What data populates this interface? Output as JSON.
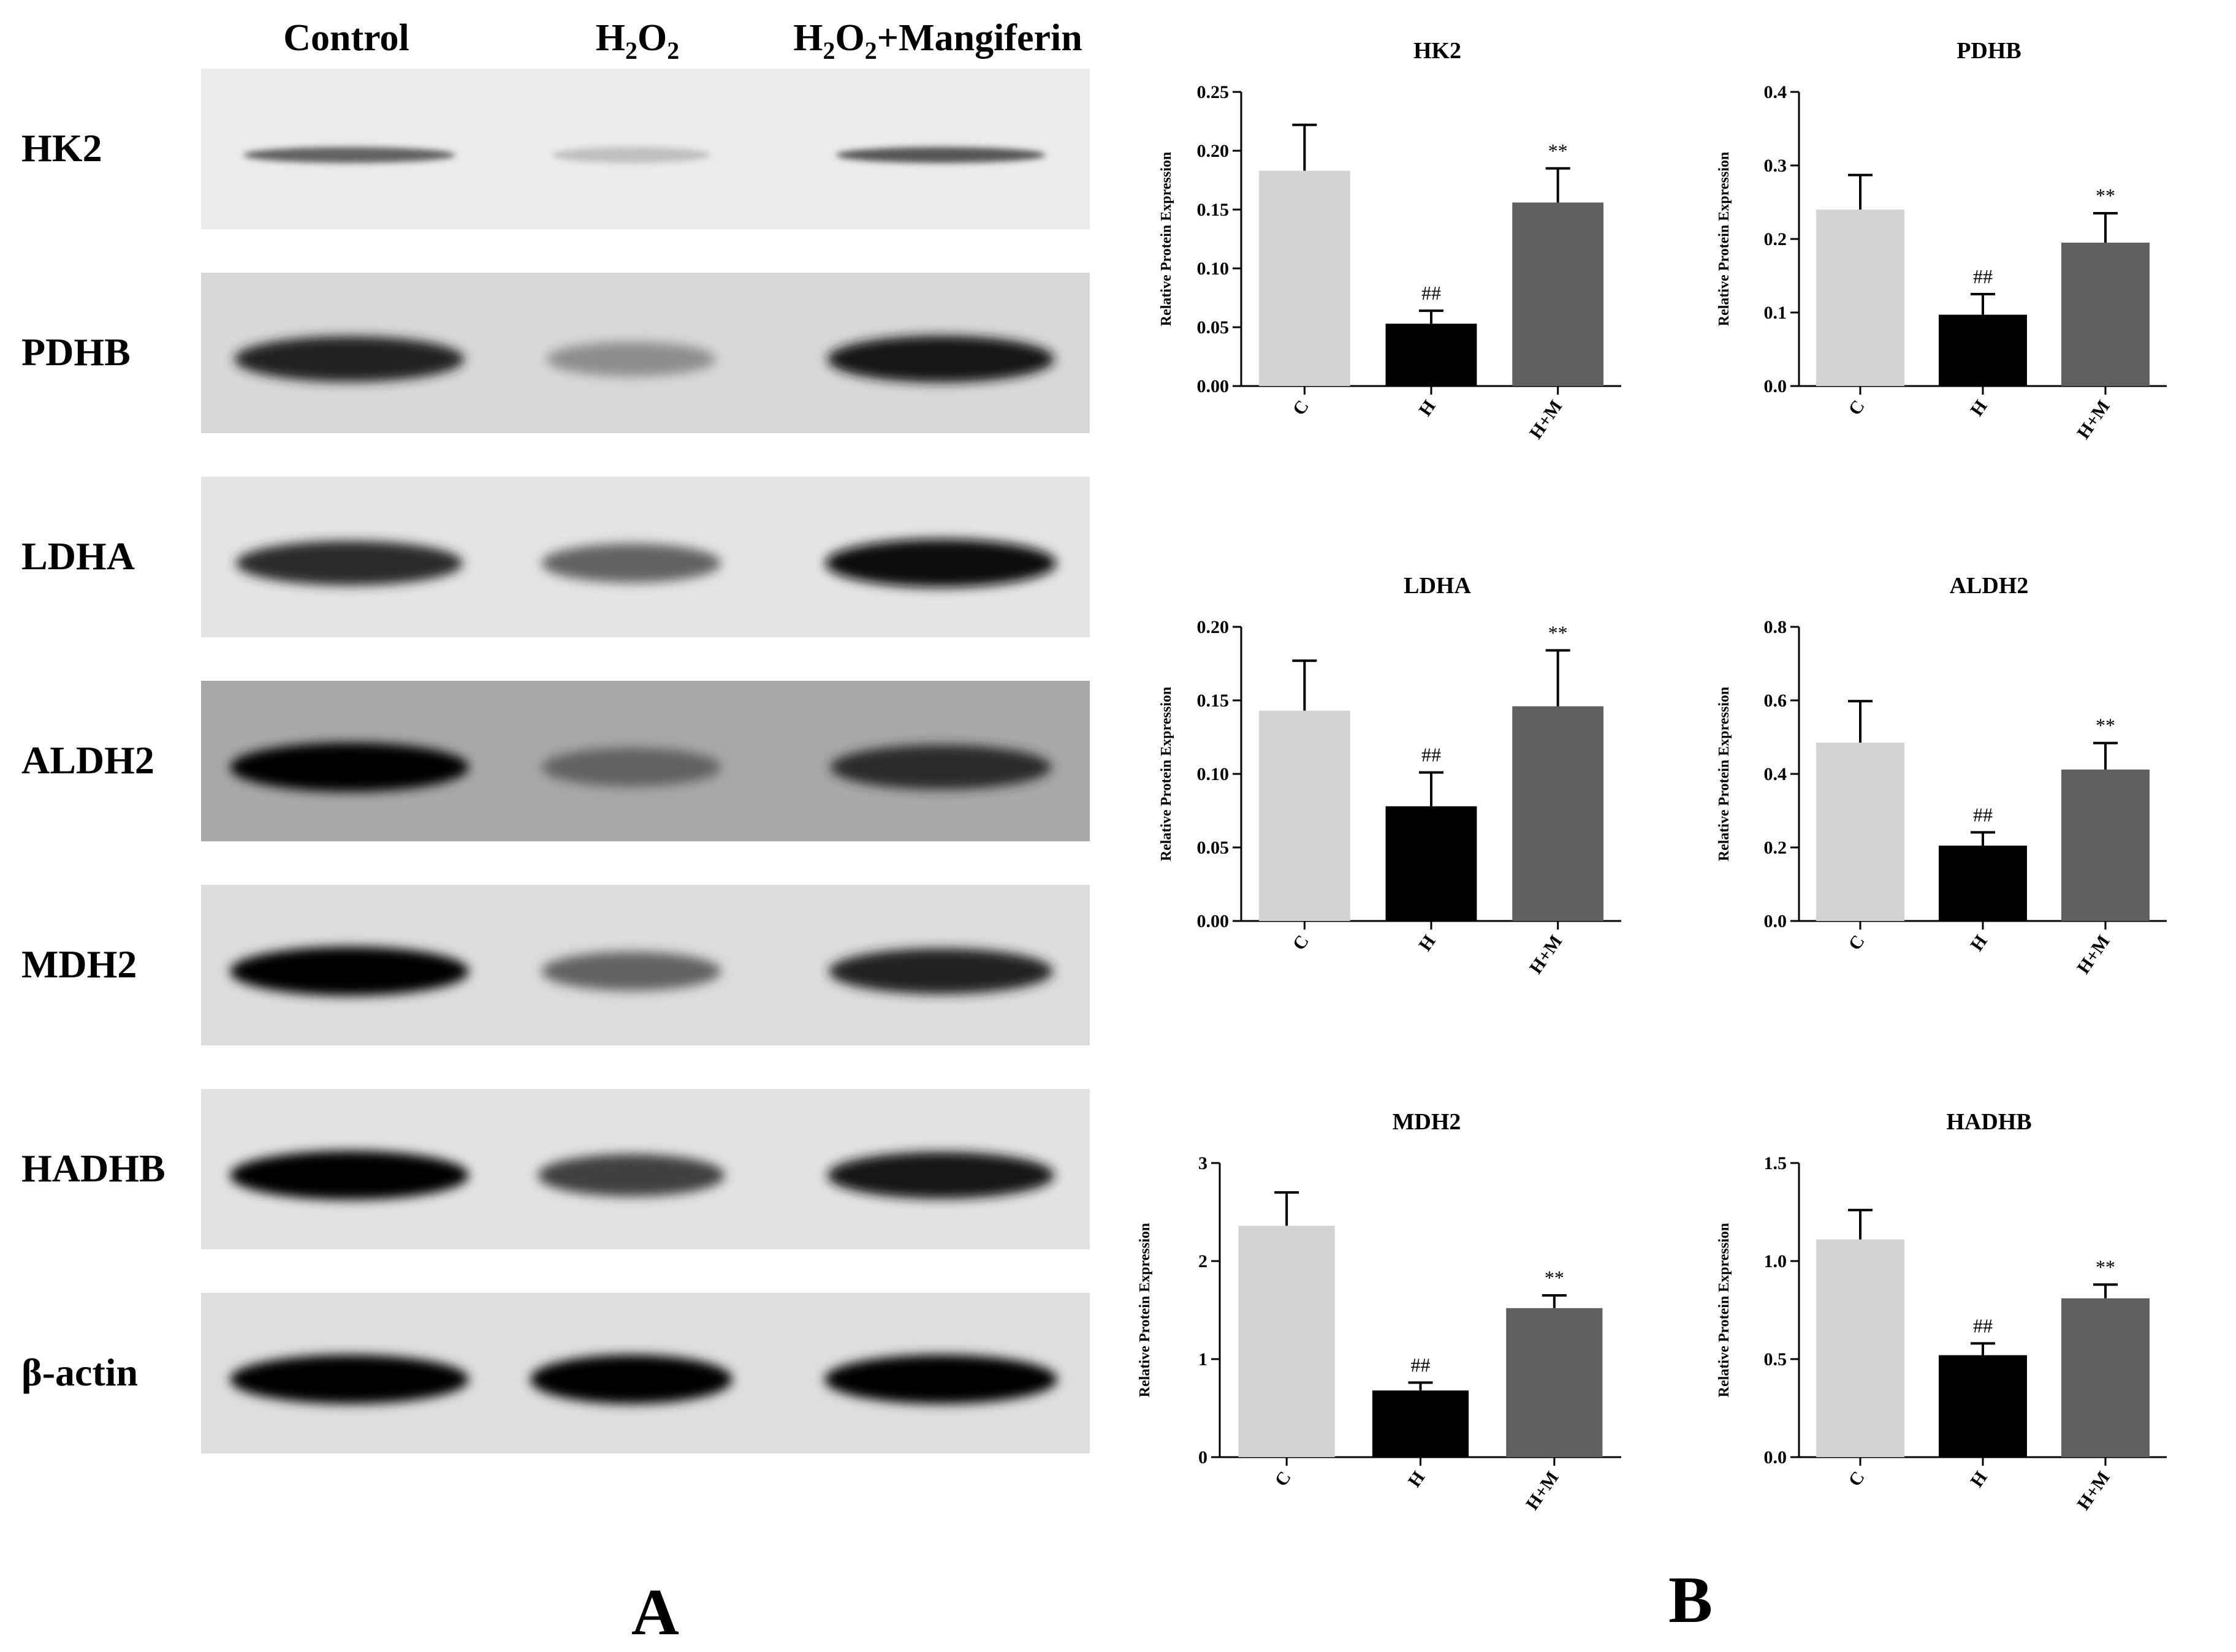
{
  "panel_a": {
    "letter": "A",
    "lanes": [
      {
        "base": "Control",
        "sub1": "",
        "mid": "",
        "sub2": "",
        "tail": ""
      },
      {
        "base": "H",
        "sub1": "2",
        "mid": "O",
        "sub2": "2",
        "tail": ""
      },
      {
        "base": "H",
        "sub1": "2",
        "mid": "O",
        "sub2": "2",
        "tail": "+Mangiferin"
      }
    ],
    "rows": [
      {
        "label": "HK2",
        "bg": "#ebebeb",
        "bands": [
          0.55,
          0.12,
          0.6
        ],
        "fine": true
      },
      {
        "label": "PDHB",
        "bg": "#d8d8d8",
        "bands": [
          0.85,
          0.35,
          0.9
        ],
        "fine": false
      },
      {
        "label": "LDHA",
        "bg": "#e4e4e4",
        "bands": [
          0.8,
          0.55,
          0.97
        ],
        "fine": false
      },
      {
        "label": "ALDH2",
        "bg": "#a8a8a8",
        "bands": [
          1.0,
          0.55,
          0.8
        ],
        "fine": false
      },
      {
        "label": "MDH2",
        "bg": "#dcdcdc",
        "bands": [
          1.0,
          0.55,
          0.85
        ],
        "fine": false
      },
      {
        "label": "HADHB",
        "bg": "#e2e2e2",
        "bands": [
          1.0,
          0.7,
          0.9
        ],
        "fine": false
      },
      {
        "label": "β-actin",
        "bg": "#dedede",
        "bands": [
          1.0,
          1.0,
          1.0
        ],
        "fine": false
      }
    ]
  },
  "panel_b": {
    "letter": "B"
  },
  "chart_data": [
    {
      "type": "bar",
      "title": "HK2",
      "ylabel": "Relative Protein Expression",
      "categories": [
        "C",
        "H",
        "H+M"
      ],
      "values": [
        0.183,
        0.053,
        0.156
      ],
      "errors": [
        0.039,
        0.011,
        0.029
      ],
      "annotations": [
        "",
        "##",
        "**"
      ],
      "ylim": [
        0,
        0.25
      ],
      "yticks": [
        "0.00",
        "0.05",
        "0.10",
        "0.15",
        "0.20",
        "0.25"
      ],
      "colors": [
        "#d3d3d3",
        "#000000",
        "#606060"
      ]
    },
    {
      "type": "bar",
      "title": "PDHB",
      "ylabel": "Relative Protein Expression",
      "categories": [
        "C",
        "H",
        "H+M"
      ],
      "values": [
        0.24,
        0.097,
        0.195
      ],
      "errors": [
        0.047,
        0.028,
        0.04
      ],
      "annotations": [
        "",
        "##",
        "**"
      ],
      "ylim": [
        0,
        0.4
      ],
      "yticks": [
        "0.0",
        "0.1",
        "0.2",
        "0.3",
        "0.4"
      ],
      "colors": [
        "#d3d3d3",
        "#000000",
        "#606060"
      ]
    },
    {
      "type": "bar",
      "title": "LDHA",
      "ylabel": "Relative Protein Expression",
      "categories": [
        "C",
        "H",
        "H+M"
      ],
      "values": [
        0.143,
        0.078,
        0.146
      ],
      "errors": [
        0.034,
        0.023,
        0.038
      ],
      "annotations": [
        "",
        "##",
        "**"
      ],
      "ylim": [
        0,
        0.2
      ],
      "yticks": [
        "0.00",
        "0.05",
        "0.10",
        "0.15",
        "0.20"
      ],
      "colors": [
        "#d3d3d3",
        "#000000",
        "#606060"
      ]
    },
    {
      "type": "bar",
      "title": "ALDH2",
      "ylabel": "Relative Protein Expression",
      "categories": [
        "C",
        "H",
        "H+M"
      ],
      "values": [
        0.485,
        0.205,
        0.412
      ],
      "errors": [
        0.113,
        0.036,
        0.072
      ],
      "annotations": [
        "",
        "##",
        "**"
      ],
      "ylim": [
        0,
        0.8
      ],
      "yticks": [
        "0.0",
        "0.2",
        "0.4",
        "0.6",
        "0.8"
      ],
      "colors": [
        "#d3d3d3",
        "#000000",
        "#606060"
      ]
    },
    {
      "type": "bar",
      "title": "MDH2",
      "ylabel": "Relative Protein Expression",
      "categories": [
        "C",
        "H",
        "H+M"
      ],
      "values": [
        2.36,
        0.68,
        1.52
      ],
      "errors": [
        0.34,
        0.08,
        0.13
      ],
      "annotations": [
        "",
        "##",
        "**"
      ],
      "ylim": [
        0,
        3
      ],
      "yticks": [
        "0",
        "1",
        "2",
        "3"
      ],
      "colors": [
        "#d3d3d3",
        "#000000",
        "#606060"
      ]
    },
    {
      "type": "bar",
      "title": "HADHB",
      "ylabel": "Relative Protein Expression",
      "categories": [
        "C",
        "H",
        "H+M"
      ],
      "values": [
        1.11,
        0.52,
        0.81
      ],
      "errors": [
        0.15,
        0.06,
        0.07
      ],
      "annotations": [
        "",
        "##",
        "**"
      ],
      "ylim": [
        0,
        1.5
      ],
      "yticks": [
        "0.0",
        "0.5",
        "1.0",
        "1.5"
      ],
      "colors": [
        "#d3d3d3",
        "#000000",
        "#606060"
      ]
    }
  ]
}
